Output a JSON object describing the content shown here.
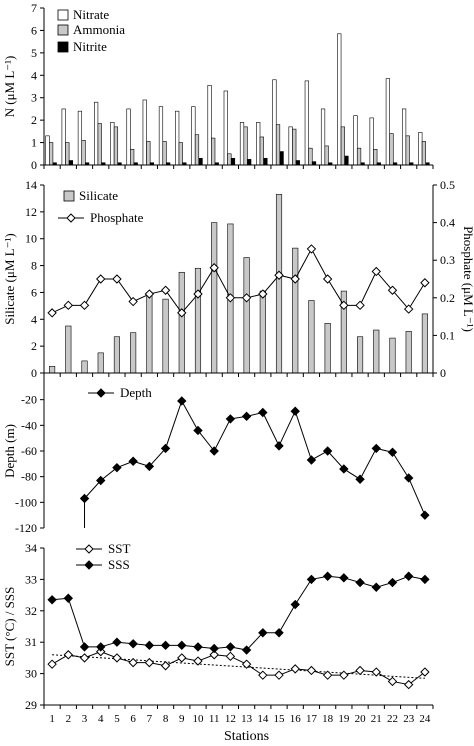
{
  "colors": {
    "axis": "#000000",
    "bar_gray": "#c8c8c8",
    "bar_white": "#ffffff",
    "bar_black": "#000000",
    "line": "#000000"
  },
  "chart_data": [
    {
      "type": "bar",
      "ylabel": "N (μM L⁻¹)",
      "ylim": [
        0,
        7
      ],
      "yticks": [
        0,
        1,
        2,
        3,
        4,
        5,
        6,
        7
      ],
      "categories": [
        1,
        2,
        3,
        4,
        5,
        6,
        7,
        8,
        9,
        10,
        11,
        12,
        13,
        14,
        15,
        16,
        17,
        18,
        19,
        20,
        21,
        22,
        23,
        24
      ],
      "legend_position": "top-left",
      "series": [
        {
          "name": "Nitrate",
          "fill": "white",
          "values": [
            1.3,
            2.5,
            2.4,
            2.8,
            1.9,
            2.5,
            2.9,
            2.6,
            2.4,
            2.6,
            3.55,
            3.3,
            1.9,
            1.9,
            3.8,
            1.7,
            3.75,
            2.5,
            5.85,
            2.2,
            2.1,
            3.85,
            2.5,
            1.45
          ]
        },
        {
          "name": "Ammonia",
          "fill": "gray",
          "values": [
            1.0,
            1.0,
            1.1,
            1.85,
            1.7,
            0.7,
            1.05,
            1.05,
            1.0,
            1.35,
            1.2,
            0.5,
            1.7,
            1.25,
            1.8,
            1.6,
            0.75,
            0.85,
            1.7,
            0.75,
            0.7,
            1.4,
            1.3,
            1.05
          ]
        },
        {
          "name": "Nitrite",
          "fill": "black",
          "values": [
            0.1,
            0.2,
            0.1,
            0.1,
            0.1,
            0.1,
            0.1,
            0.1,
            0.1,
            0.3,
            0.1,
            0.3,
            0.25,
            0.3,
            0.6,
            0.2,
            0.15,
            0.1,
            0.4,
            0.1,
            0.1,
            0.1,
            0.1,
            0.1
          ]
        }
      ]
    },
    {
      "type": "bar+line",
      "ylabel": "Silicate (μM L⁻¹)",
      "ylabel_right": "Phosphate (μM L⁻¹)",
      "ylim": [
        0,
        14
      ],
      "yticks": [
        0,
        2,
        4,
        6,
        8,
        10,
        12,
        14
      ],
      "ylim_right": [
        0,
        0.5
      ],
      "yticks_right": [
        "0",
        "0.1",
        "0.2",
        "0.3",
        "0.4",
        "0.5"
      ],
      "categories": [
        1,
        2,
        3,
        4,
        5,
        6,
        7,
        8,
        9,
        10,
        11,
        12,
        13,
        14,
        15,
        16,
        17,
        18,
        19,
        20,
        21,
        22,
        23,
        24
      ],
      "legend_position": "top-left",
      "series": [
        {
          "name": "Silicate",
          "kind": "bar",
          "axis": "left",
          "values": [
            0.5,
            3.5,
            0.9,
            1.5,
            2.7,
            3.0,
            6.0,
            5.5,
            7.5,
            7.8,
            11.2,
            11.1,
            8.6,
            6.1,
            13.3,
            9.3,
            5.4,
            3.7,
            6.1,
            2.7,
            3.2,
            2.6,
            3.1,
            4.4
          ]
        },
        {
          "name": "Phosphate",
          "kind": "line",
          "marker": "open-diamond",
          "axis": "right",
          "values": [
            0.16,
            0.18,
            0.18,
            0.25,
            0.25,
            0.19,
            0.21,
            0.22,
            0.16,
            0.21,
            0.28,
            0.2,
            0.2,
            0.21,
            0.26,
            0.25,
            0.33,
            0.25,
            0.18,
            0.18,
            0.27,
            0.22,
            0.17,
            0.24
          ]
        }
      ]
    },
    {
      "type": "line",
      "ylabel": "Depth (m)",
      "ylim": [
        -120,
        0
      ],
      "yticks": [
        -20,
        -40,
        -60,
        -80,
        -100,
        -120
      ],
      "categories": [
        3,
        4,
        5,
        6,
        7,
        8,
        9,
        10,
        11,
        12,
        13,
        14,
        15,
        16,
        17,
        18,
        19,
        20,
        21,
        22,
        23,
        24
      ],
      "legend_position": "top-left",
      "series": [
        {
          "name": "Depth",
          "marker": "filled-diamond",
          "values": [
            -97,
            -83,
            -73,
            -68,
            -72,
            -58,
            -21,
            -44,
            -60,
            -35,
            -33,
            -30,
            -56,
            -29,
            -67,
            -60,
            -74,
            -82,
            -58,
            -61,
            -81,
            -110
          ]
        }
      ]
    },
    {
      "type": "line",
      "ylabel": "SST (°C) / SSS",
      "ylim": [
        29,
        34
      ],
      "yticks": [
        29,
        30,
        31,
        32,
        33,
        34
      ],
      "xlabel": "Stations",
      "categories": [
        1,
        2,
        3,
        4,
        5,
        6,
        7,
        8,
        9,
        10,
        11,
        12,
        13,
        14,
        15,
        16,
        17,
        18,
        19,
        20,
        21,
        22,
        23,
        24
      ],
      "legend_position": "top-left",
      "trendline": {
        "series": "SST",
        "start": 30.6,
        "end": 29.85,
        "style": "dotted"
      },
      "series": [
        {
          "name": "SST",
          "marker": "open-diamond",
          "values": [
            30.3,
            30.6,
            30.5,
            30.7,
            30.5,
            30.35,
            30.35,
            30.25,
            30.5,
            30.4,
            30.6,
            30.55,
            30.3,
            29.95,
            29.95,
            30.15,
            30.1,
            29.95,
            29.95,
            30.1,
            30.05,
            29.75,
            29.65,
            30.05
          ]
        },
        {
          "name": "SSS",
          "marker": "filled-diamond",
          "values": [
            32.35,
            32.4,
            30.85,
            30.85,
            31.0,
            30.95,
            30.9,
            30.9,
            30.9,
            30.85,
            30.8,
            30.85,
            30.75,
            31.3,
            31.3,
            32.2,
            33.0,
            33.1,
            33.05,
            32.9,
            32.75,
            32.9,
            33.1,
            33.0
          ]
        }
      ]
    }
  ]
}
